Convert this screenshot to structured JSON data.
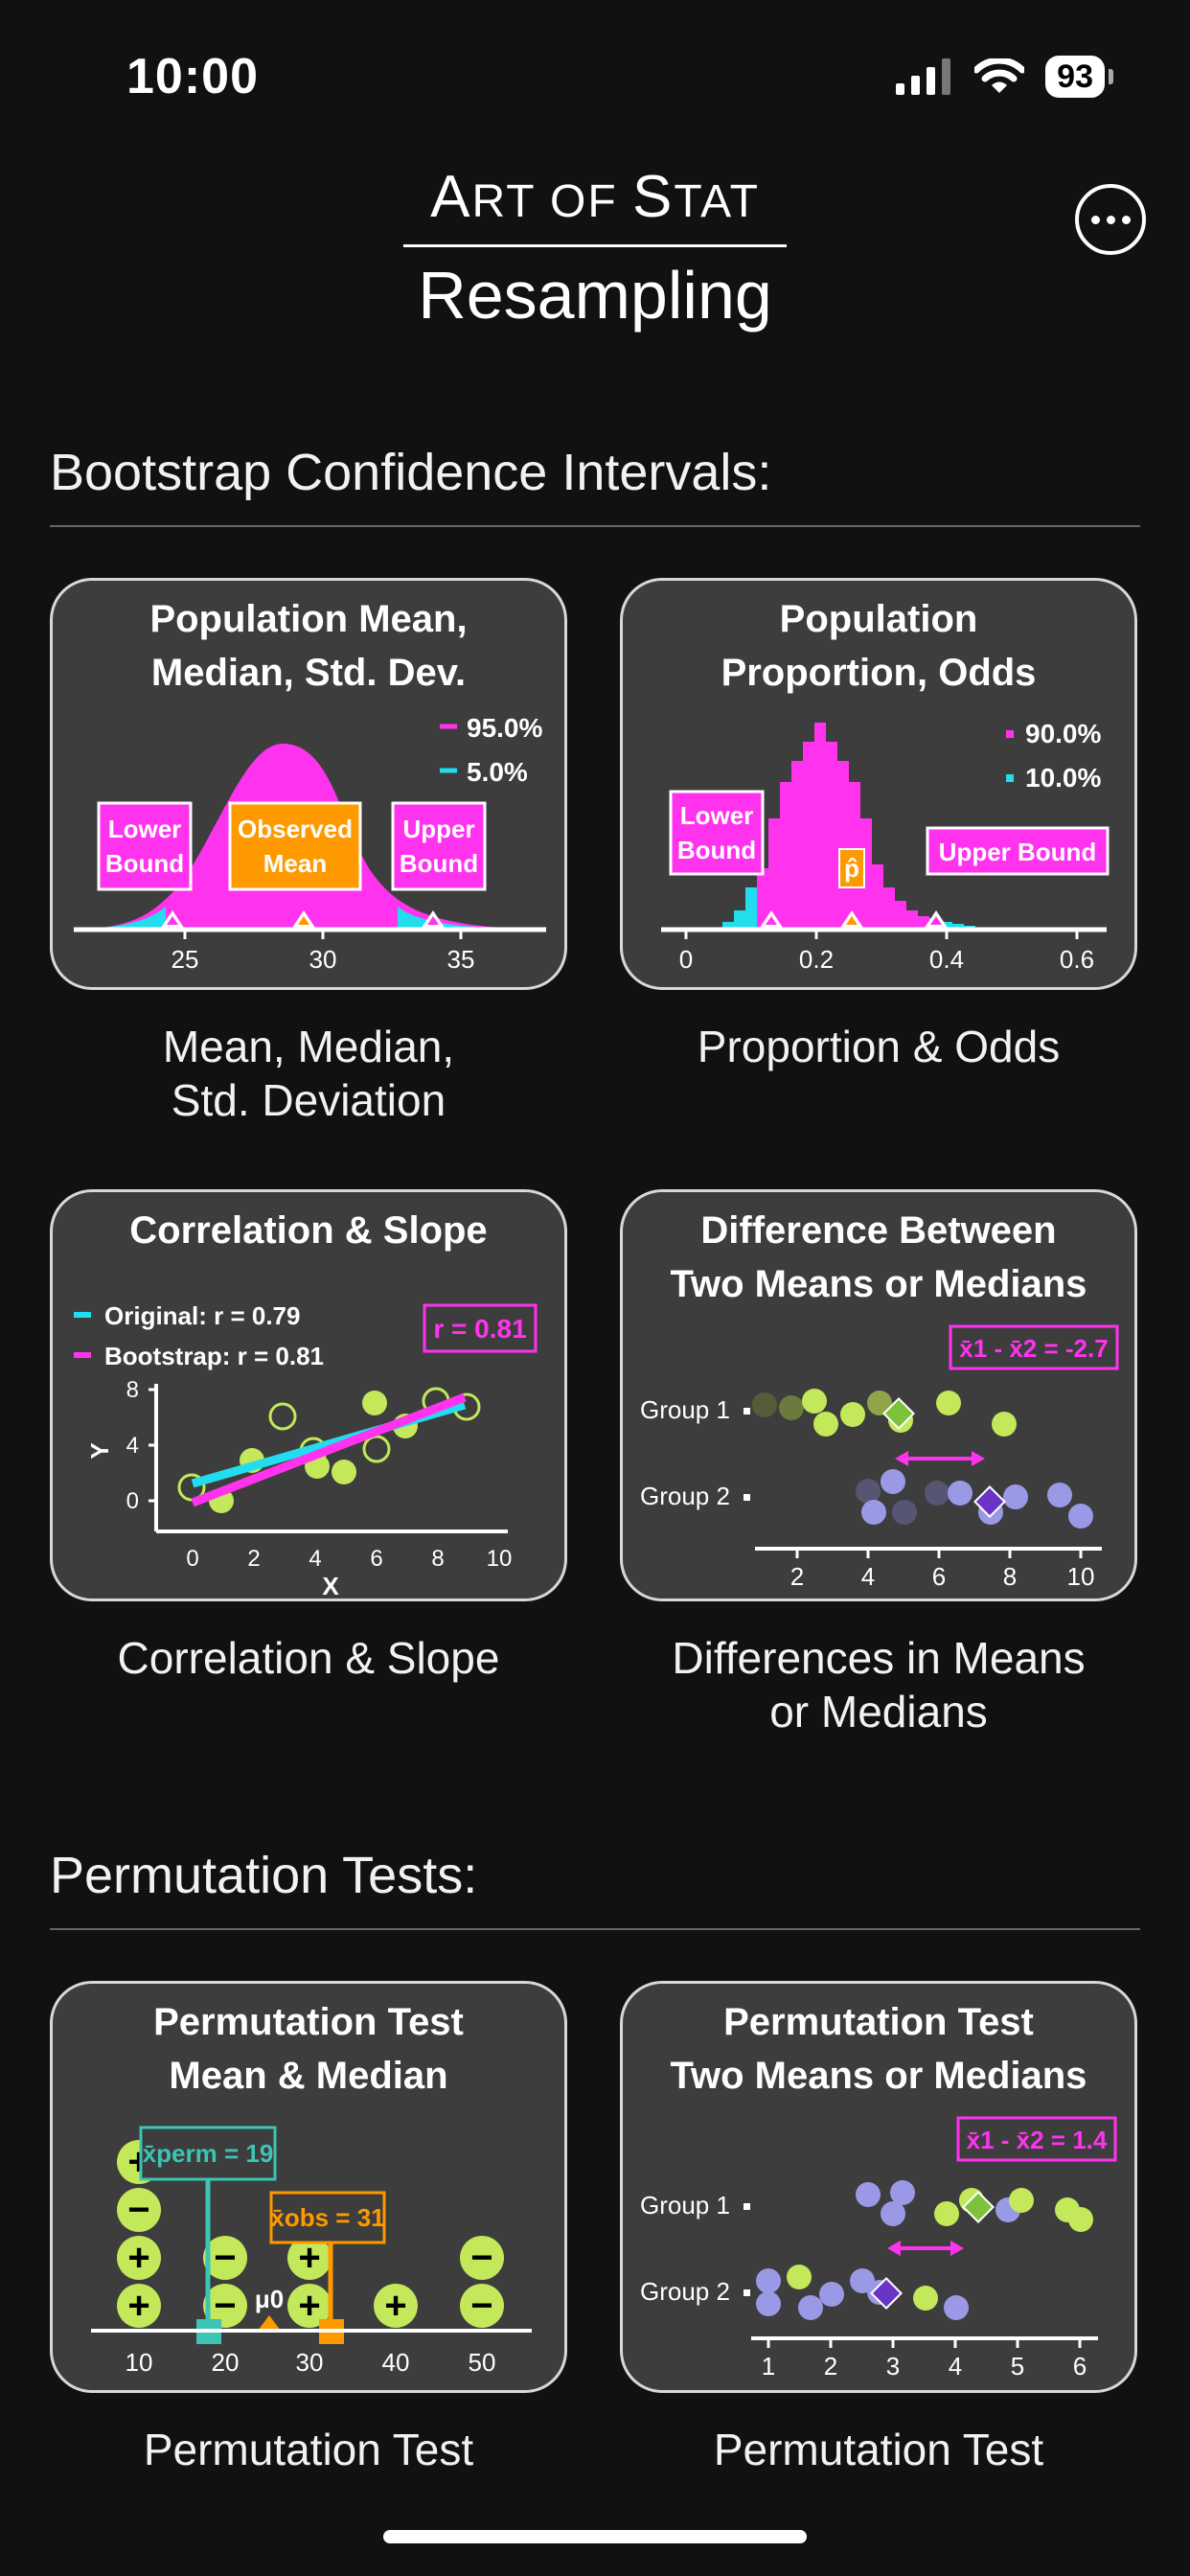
{
  "status": {
    "time": "10:00",
    "battery": "93"
  },
  "app": {
    "brand_a": "A",
    "brand_b": "RT OF ",
    "brand_c": "S",
    "brand_d": "TAT",
    "subtitle": "Resampling"
  },
  "sections": {
    "bootstrap_title": "Bootstrap Confidence Intervals:",
    "permutation_title": "Permutation Tests:"
  },
  "cards": [
    {
      "title_line1": "Population Mean,",
      "title_line2": "Median, Std. Dev.",
      "legend": [
        "95.0%",
        "5.0%"
      ],
      "labels": {
        "lower": [
          "Lower",
          "Bound"
        ],
        "observed": [
          "Observed",
          "Mean"
        ],
        "upper": [
          "Upper",
          "Bound"
        ]
      },
      "ticks": [
        "25",
        "30",
        "35"
      ],
      "caption_line1": "Mean, Median,",
      "caption_line2": "Std. Deviation"
    },
    {
      "title_line1": "Population",
      "title_line2": "Proportion, Odds",
      "legend": [
        "90.0%",
        "10.0%"
      ],
      "labels": {
        "lower": [
          "Lower",
          "Bound"
        ],
        "observed": "p̂",
        "upper": "Upper Bound"
      },
      "ticks": [
        "0",
        "0.2",
        "0.4",
        "0.6"
      ],
      "caption_line1": "Proportion & Odds"
    },
    {
      "title_line1": "Correlation & Slope",
      "legend": [
        "Original: r = 0.79",
        "Bootstrap: r = 0.81"
      ],
      "badge": "r = 0.81",
      "y_label": "Y",
      "x_label": "X",
      "y_ticks": [
        "8",
        "4",
        "0"
      ],
      "x_ticks": [
        "0",
        "2",
        "4",
        "6",
        "8",
        "10"
      ],
      "caption_line1": "Correlation & Slope"
    },
    {
      "title_line1": "Difference Between",
      "title_line2": "Two Means or Medians",
      "badge": "x̄1 - x̄2 = -2.7",
      "groups": [
        "Group 1",
        "Group 2"
      ],
      "ticks": [
        "2",
        "4",
        "6",
        "8",
        "10"
      ],
      "caption_line1": "Differences in Means",
      "caption_line2": "or Medians"
    },
    {
      "title_line1": "Permutation Test",
      "title_line2": "Mean & Median",
      "perm_label": "x̄perm = 19",
      "obs_label": "x̄obs = 31",
      "mu_label": "μ0",
      "ticks": [
        "10",
        "20",
        "30",
        "40",
        "50"
      ],
      "caption_line1": "Permutation Test"
    },
    {
      "title_line1": "Permutation Test",
      "title_line2": "Two Means or Medians",
      "badge": "x̄1 - x̄2 = 1.4",
      "groups": [
        "Group 1",
        "Group 2"
      ],
      "ticks": [
        "1",
        "2",
        "3",
        "4",
        "5",
        "6"
      ],
      "caption_line1": "Permutation Test"
    }
  ],
  "colors": {
    "magenta": "#ff33ee",
    "cyan": "#22ddee",
    "orange": "#ff9900",
    "lime": "#c3e85a",
    "lavender": "#9a99e6",
    "card_bg": "#3d3d3d"
  }
}
